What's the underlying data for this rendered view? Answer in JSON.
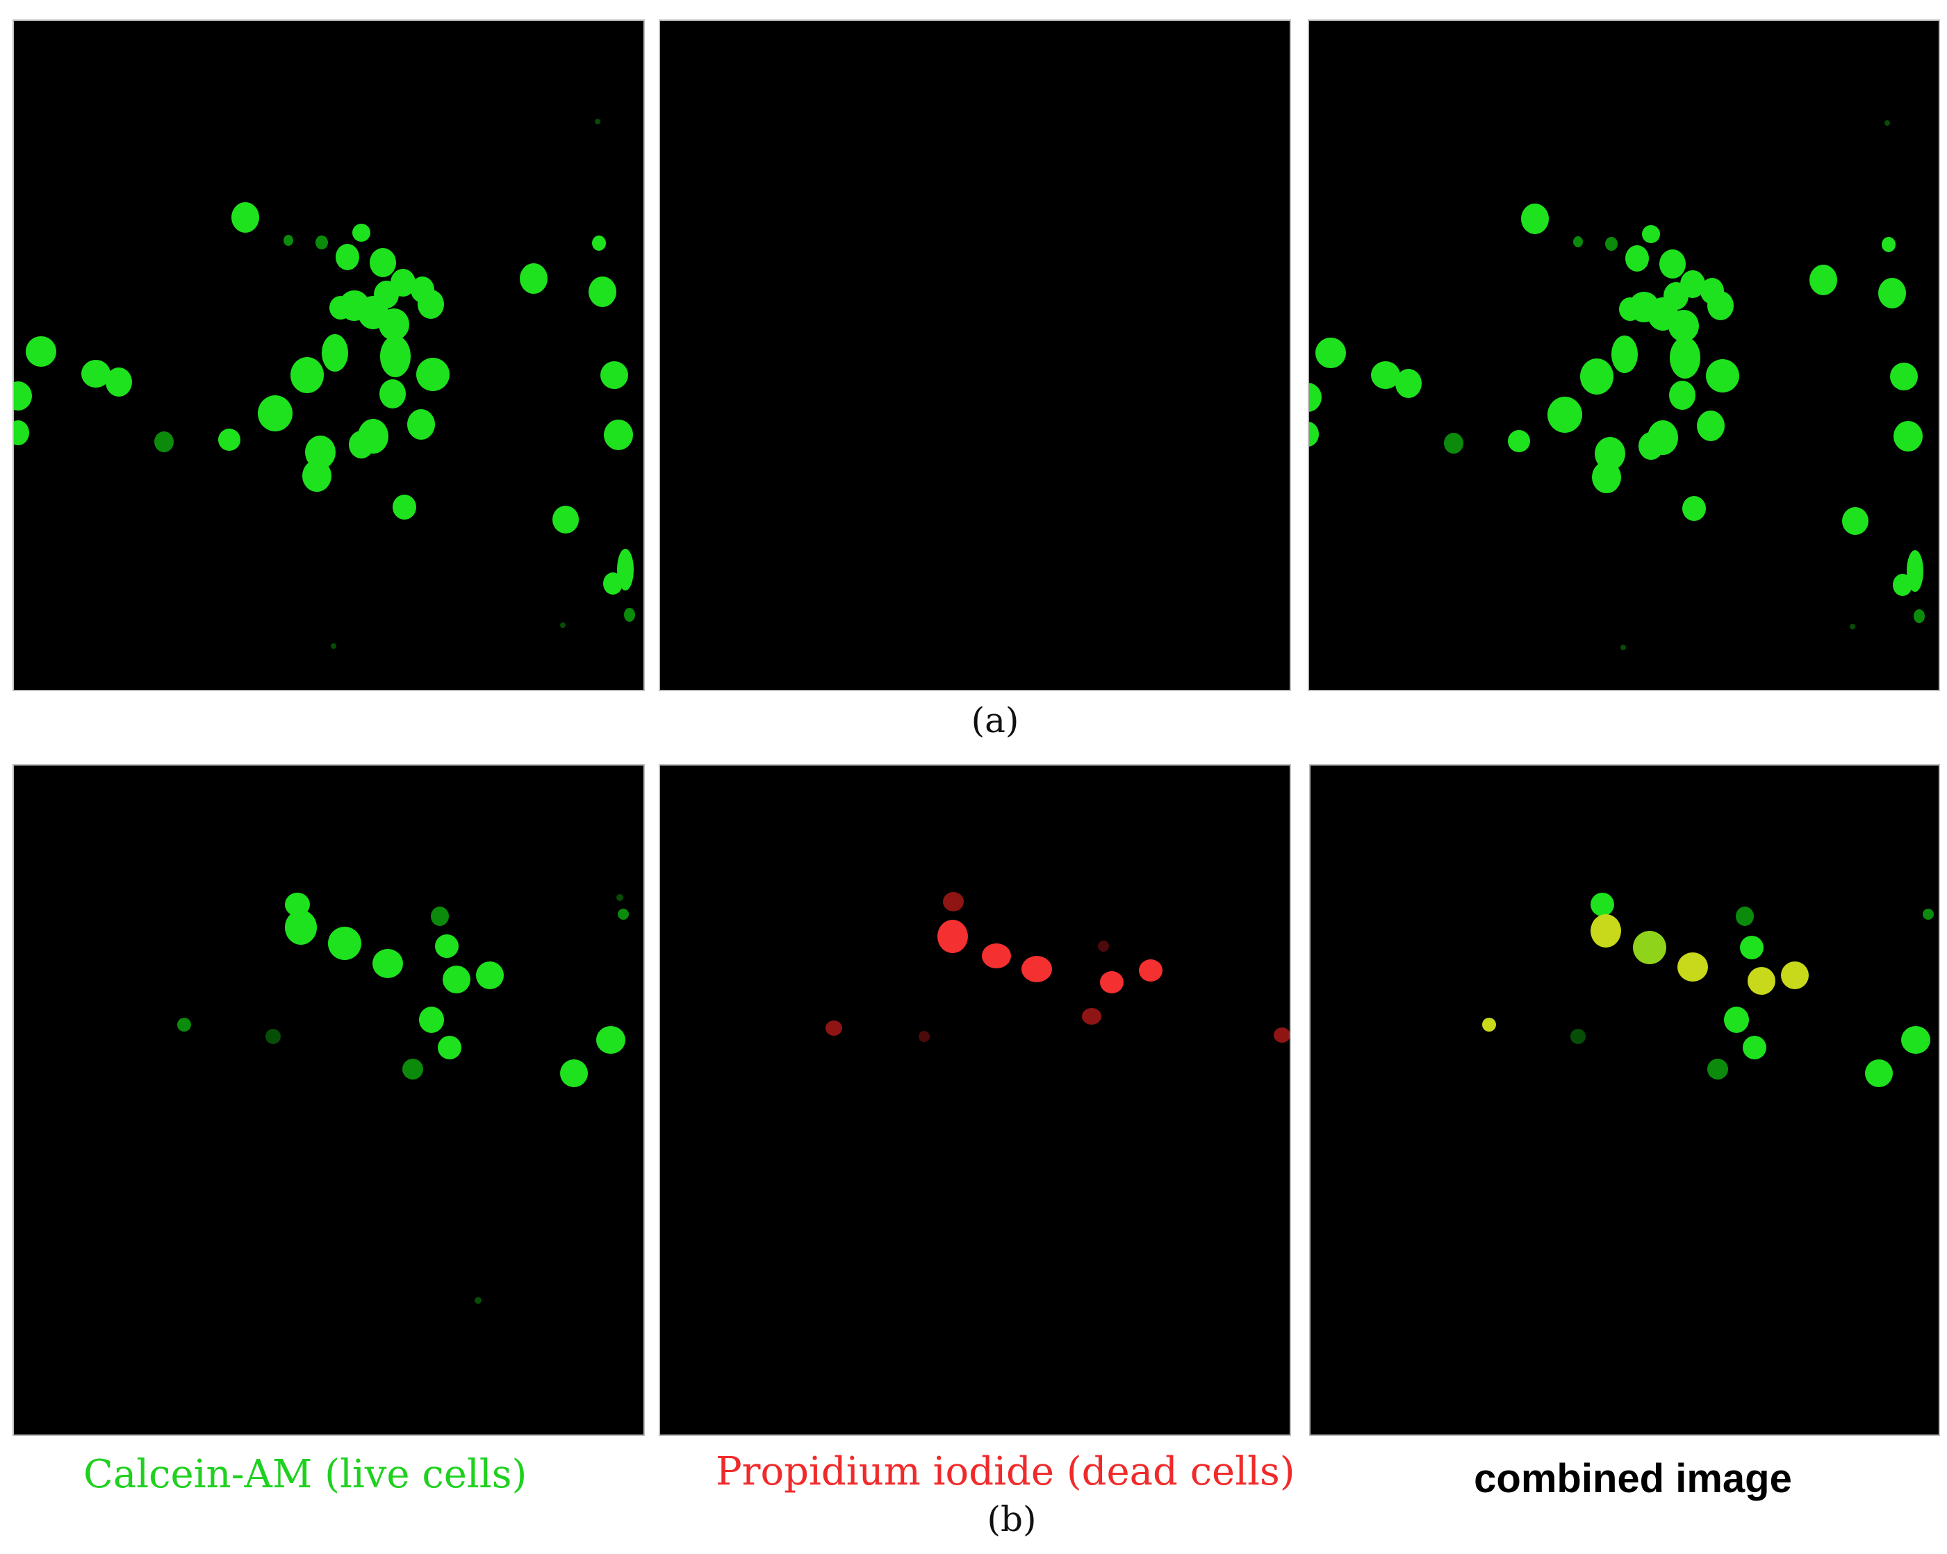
{
  "figure": {
    "row_a": {
      "label": "(a)"
    },
    "row_b": {
      "label": "(b)"
    },
    "captions": {
      "live": "Calcein-AM (live cells)",
      "dead": "Propidium iodide (dead cells)",
      "combined": "combined image"
    },
    "colors": {
      "live_green": "#1fd11f",
      "dead_red": "#f02a2a",
      "merged_yellow": "#c8d81a",
      "background": "#000000"
    }
  }
}
